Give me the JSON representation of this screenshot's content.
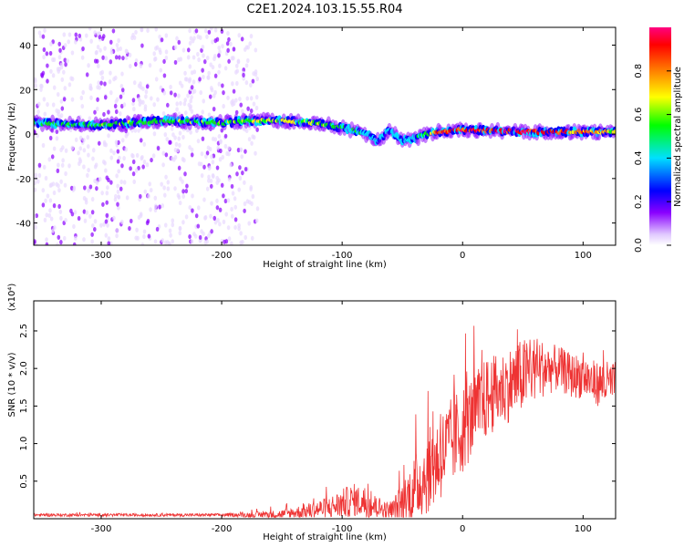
{
  "title": "C2E1.2024.103.15.55.R04",
  "chart_data": [
    {
      "type": "heatmap",
      "title": "C2E1.2024.103.15.55.R04",
      "xlabel": "Height of straight line (km)",
      "ylabel": "Frequency (Hz)",
      "xlim": [
        -356,
        127
      ],
      "ylim": [
        -50,
        48
      ],
      "xticks": [
        -300,
        -200,
        -100,
        0,
        100
      ],
      "yticks": [
        -40,
        -20,
        0,
        20,
        40
      ],
      "grid": false,
      "colorbar": {
        "label": "Normalized spectral amplitude",
        "range": [
          0,
          1
        ],
        "ticks": [
          "0.0",
          "0.2",
          "0.4",
          "0.6",
          "0.8"
        ],
        "colormap": [
          "#e8d8ff",
          "#8a00ff",
          "#0000ff",
          "#00e0ff",
          "#00ff00",
          "#ffff00",
          "#ff8000",
          "#ff0000",
          "#ff0080"
        ]
      },
      "ridge": {
        "x": [
          -356,
          -300,
          -250,
          -200,
          -180,
          -150,
          -120,
          -100,
          -80,
          -70,
          -60,
          -50,
          -40,
          -30,
          -20,
          0,
          50,
          100,
          127
        ],
        "frequency": [
          5,
          4,
          6,
          5,
          6,
          6,
          5,
          3,
          0,
          -3,
          2,
          -3,
          -2,
          0,
          1,
          2,
          1,
          1,
          1
        ],
        "amplitude": [
          0.45,
          0.5,
          0.5,
          0.5,
          0.55,
          0.6,
          0.55,
          0.45,
          0.4,
          0.35,
          0.4,
          0.35,
          0.4,
          0.5,
          0.8,
          0.85,
          0.9,
          0.75,
          0.6
        ]
      },
      "noise_region_x": [
        -356,
        -170
      ]
    },
    {
      "type": "line",
      "xlabel": "Height of straight line (km)",
      "ylabel": "SNR (10 * v/v)",
      "y_multiplier": "(x10⁴)",
      "xlim": [
        -356,
        127
      ],
      "ylim": [
        0,
        2.9
      ],
      "xticks": [
        -300,
        -200,
        -100,
        0,
        100
      ],
      "yticks": [
        "0.5",
        "1.0",
        "1.5",
        "2.0",
        "2.5"
      ],
      "grid": false,
      "series": [
        {
          "color": "#ee3333",
          "x": [
            -356,
            -300,
            -250,
            -200,
            -180,
            -150,
            -130,
            -110,
            -100,
            -90,
            -80,
            -70,
            -60,
            -50,
            -40,
            -30,
            -20,
            -10,
            0,
            10,
            20,
            30,
            40,
            50,
            60,
            70,
            80,
            90,
            100,
            110,
            120,
            127
          ],
          "y_mean": [
            0.05,
            0.05,
            0.05,
            0.05,
            0.05,
            0.06,
            0.1,
            0.15,
            0.2,
            0.25,
            0.2,
            0.15,
            0.1,
            0.2,
            0.4,
            0.6,
            0.8,
            1.0,
            1.2,
            1.4,
            1.6,
            1.7,
            1.8,
            1.9,
            2.0,
            2.0,
            2.0,
            1.9,
            1.9,
            1.8,
            1.8,
            1.8
          ],
          "y_spread": [
            0.02,
            0.02,
            0.02,
            0.02,
            0.03,
            0.06,
            0.1,
            0.15,
            0.2,
            0.22,
            0.2,
            0.15,
            0.1,
            0.3,
            0.45,
            0.55,
            0.6,
            0.6,
            0.6,
            0.55,
            0.55,
            0.5,
            0.5,
            0.5,
            0.45,
            0.35,
            0.3,
            0.3,
            0.3,
            0.3,
            0.3,
            0.3
          ]
        }
      ]
    }
  ]
}
